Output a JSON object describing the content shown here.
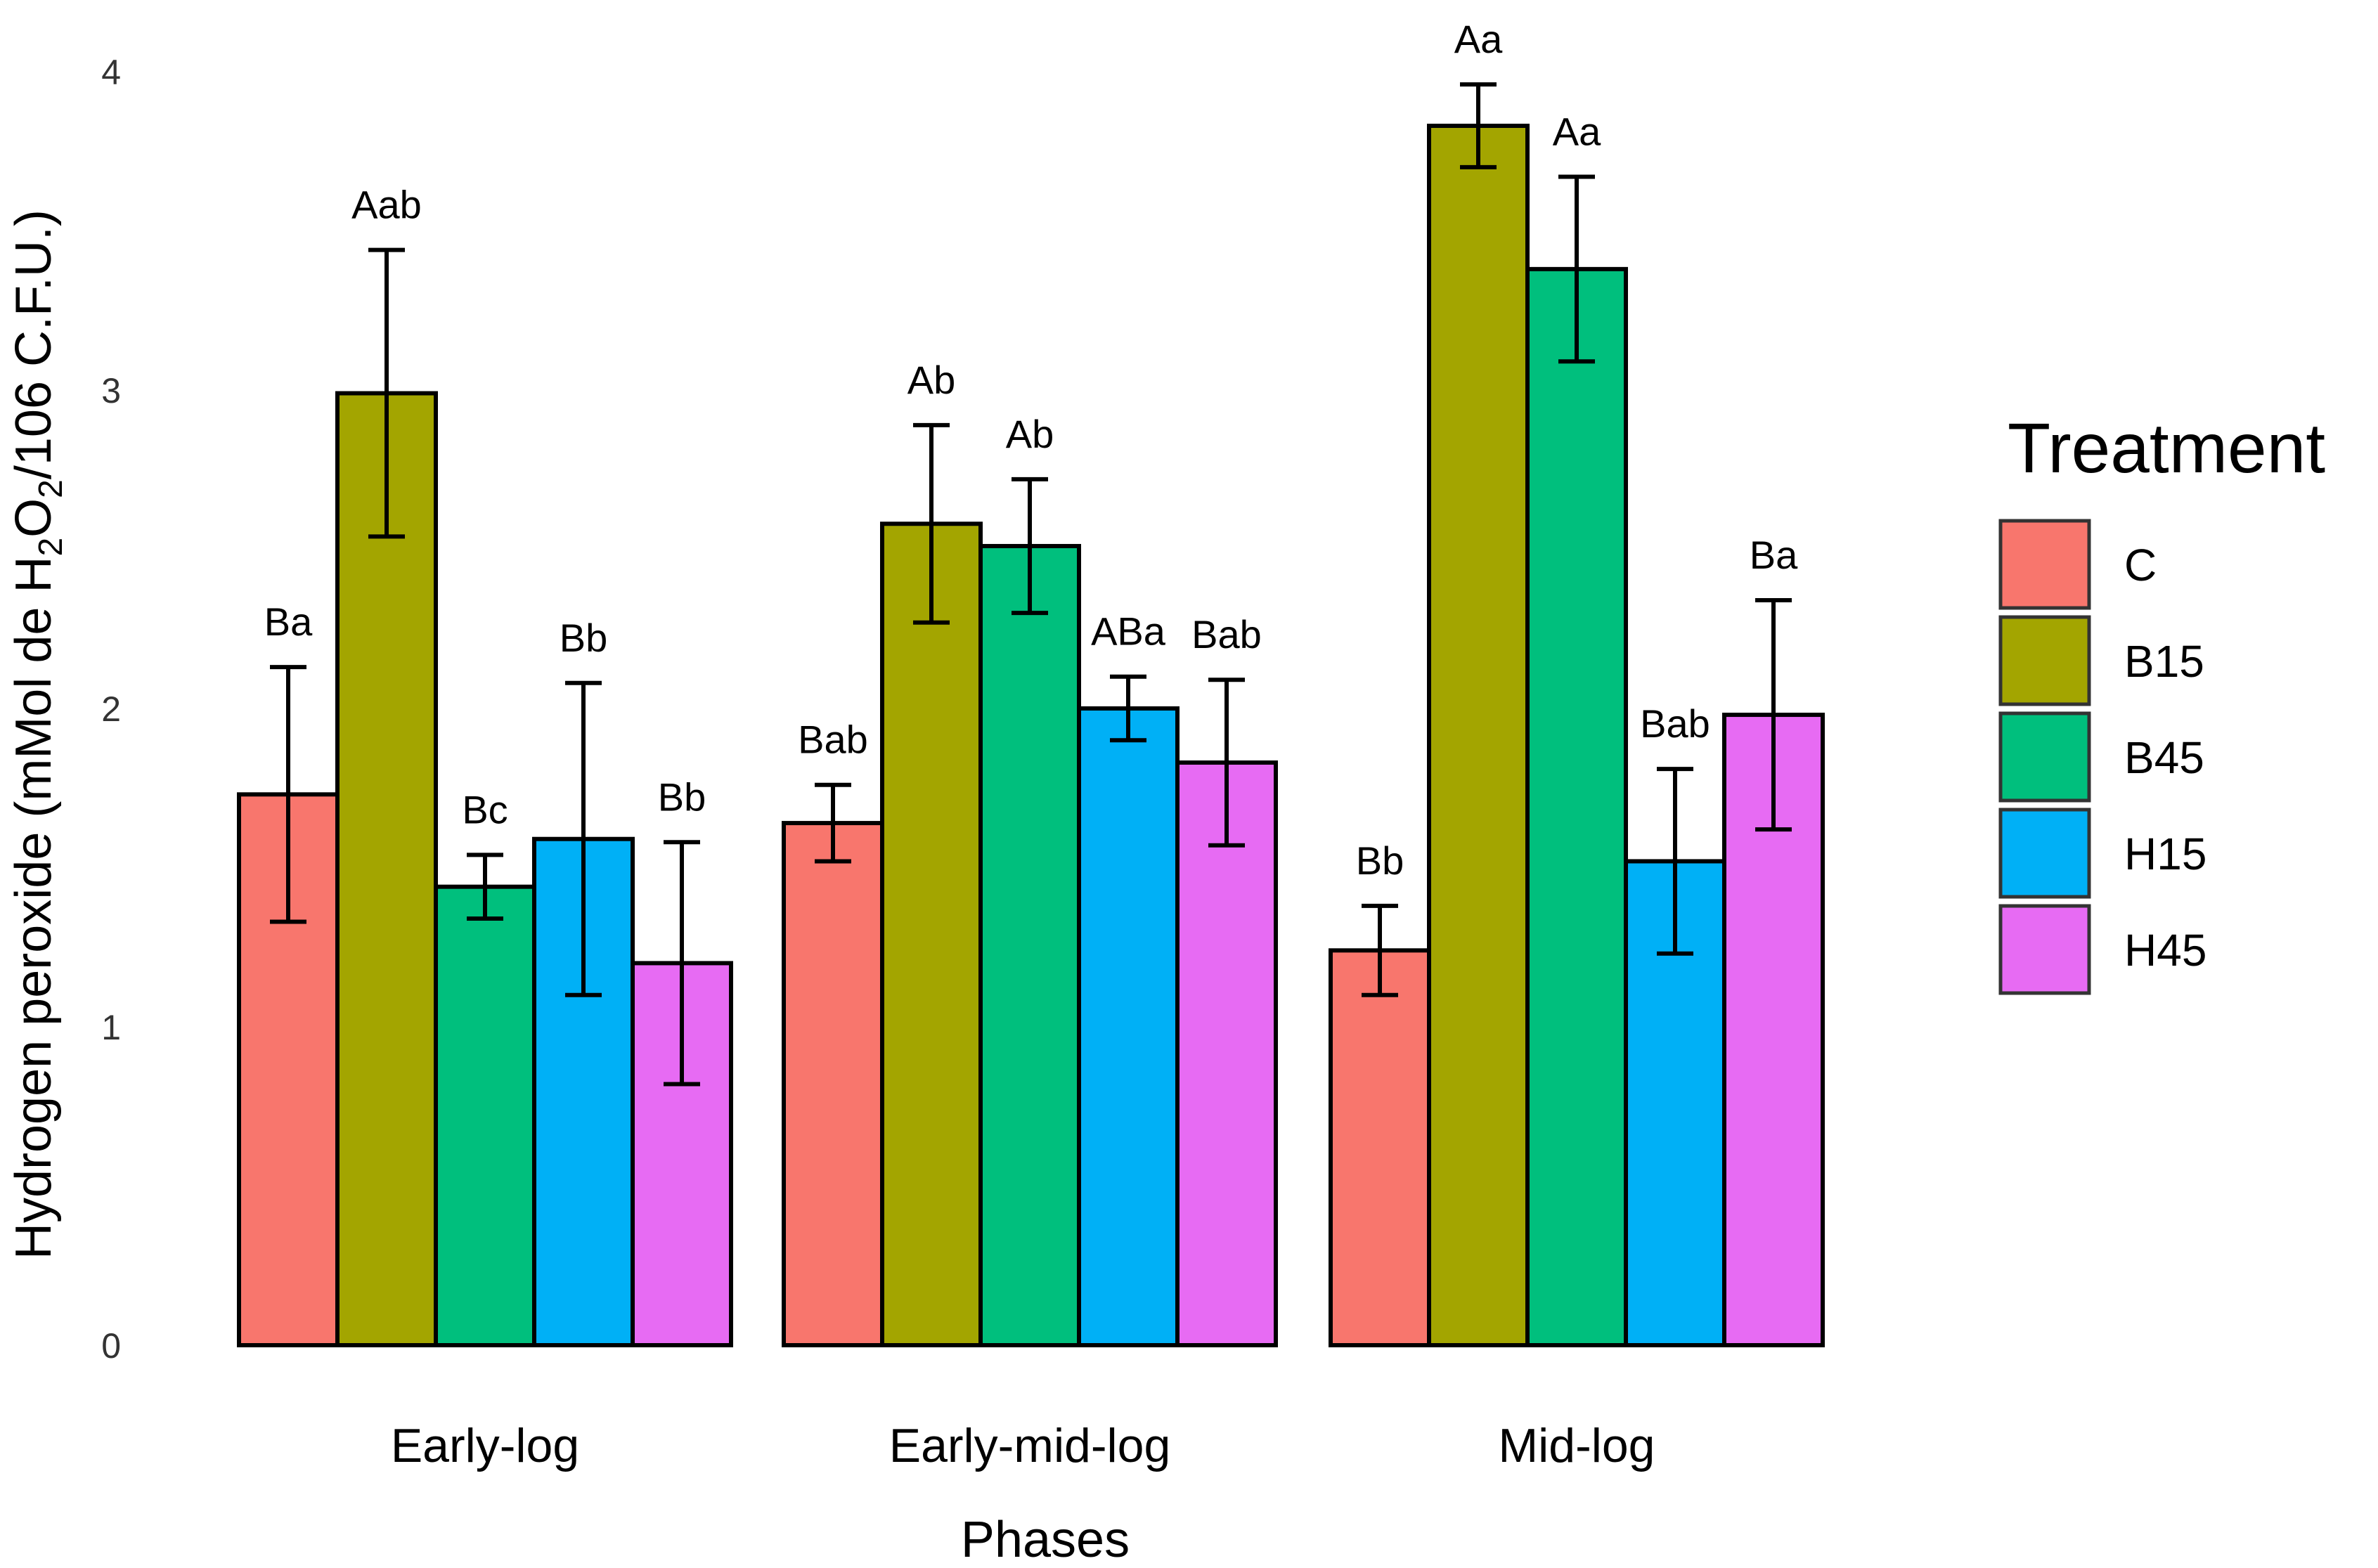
{
  "chart_data": {
    "type": "bar",
    "title": "",
    "xlabel": "Phases",
    "ylabel": {
      "prefix": "Hydrogen peroxide (mMol de H",
      "sub1": "2",
      "mid": "O",
      "sub2": "2",
      "suffix": "/106 C.F.U.)"
    },
    "ylim": [
      0,
      4.2
    ],
    "yticks": [
      "0",
      "1",
      "2",
      "3",
      "4"
    ],
    "categories": [
      "Early-log",
      "Early-mid-log",
      "Mid-log"
    ],
    "legend": {
      "title": "Treatment",
      "position": "right"
    },
    "series": [
      {
        "name": "C",
        "color": "#F8766D",
        "values": [
          1.73,
          1.64,
          1.24
        ],
        "errors": [
          0.4,
          0.12,
          0.14
        ],
        "labels": [
          "Ba",
          "Bab",
          "Bb"
        ]
      },
      {
        "name": "B15",
        "color": "#A3A500",
        "values": [
          2.99,
          2.58,
          3.83
        ],
        "errors": [
          0.45,
          0.31,
          0.13
        ],
        "labels": [
          "Aab",
          "Ab",
          "Aa"
        ]
      },
      {
        "name": "B45",
        "color": "#00BF7D",
        "values": [
          1.44,
          2.51,
          3.38
        ],
        "errors": [
          0.1,
          0.21,
          0.29
        ],
        "labels": [
          "Bc",
          "Ab",
          "Aa"
        ]
      },
      {
        "name": "H15",
        "color": "#00B0F6",
        "values": [
          1.59,
          2.0,
          1.52
        ],
        "errors": [
          0.49,
          0.1,
          0.29
        ],
        "labels": [
          "Bb",
          "ABa",
          "Bab"
        ]
      },
      {
        "name": "H45",
        "color": "#E76BF3",
        "values": [
          1.2,
          1.83,
          1.98
        ],
        "errors": [
          0.38,
          0.26,
          0.36
        ],
        "labels": [
          "Bb",
          "Bab",
          "Ba"
        ]
      }
    ]
  }
}
